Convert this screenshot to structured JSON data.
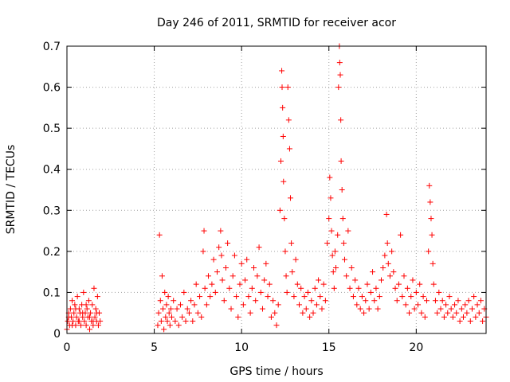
{
  "chart_data": {
    "type": "scatter",
    "title": "Day 246 of 2011, SRMTID for receiver acor",
    "xlabel": "GPS time / hours",
    "ylabel": "SRMTID / TECUs",
    "xlim": [
      0,
      24
    ],
    "ylim": [
      0,
      0.7
    ],
    "x_ticks": [
      0,
      5,
      10,
      15,
      20
    ],
    "x_tick_labels": [
      "0",
      "5",
      "10",
      "15",
      "20"
    ],
    "y_ticks": [
      0,
      0.1,
      0.2,
      0.3,
      0.4,
      0.5,
      0.6,
      0.7
    ],
    "y_tick_labels": [
      "0",
      "0.1",
      "0.2",
      "0.3",
      "0.4",
      "0.5",
      "0.6",
      "0.7"
    ],
    "grid": true,
    "marker": "+",
    "color": "#ff0000",
    "series": [
      {
        "name": "SRMTID",
        "points": [
          [
            0.0,
            0.01
          ],
          [
            0.05,
            0.03
          ],
          [
            0.1,
            0.05
          ],
          [
            0.15,
            0.02
          ],
          [
            0.2,
            0.06
          ],
          [
            0.25,
            0.04
          ],
          [
            0.3,
            0.08
          ],
          [
            0.35,
            0.03
          ],
          [
            0.4,
            0.05
          ],
          [
            0.45,
            0.07
          ],
          [
            0.5,
            0.02
          ],
          [
            0.55,
            0.04
          ],
          [
            0.6,
            0.09
          ],
          [
            0.65,
            0.03
          ],
          [
            0.7,
            0.06
          ],
          [
            0.75,
            0.05
          ],
          [
            0.8,
            0.02
          ],
          [
            0.85,
            0.07
          ],
          [
            0.9,
            0.04
          ],
          [
            0.95,
            0.1
          ],
          [
            1.0,
            0.03
          ],
          [
            1.05,
            0.05
          ],
          [
            1.1,
            0.02
          ],
          [
            1.15,
            0.06
          ],
          [
            1.2,
            0.04
          ],
          [
            1.25,
            0.08
          ],
          [
            1.3,
            0.01
          ],
          [
            1.35,
            0.05
          ],
          [
            1.4,
            0.03
          ],
          [
            1.45,
            0.07
          ],
          [
            1.5,
            0.02
          ],
          [
            1.55,
            0.11
          ],
          [
            1.6,
            0.04
          ],
          [
            1.65,
            0.06
          ],
          [
            1.7,
            0.03
          ],
          [
            1.75,
            0.09
          ],
          [
            1.8,
            0.02
          ],
          [
            1.85,
            0.05
          ],
          [
            1.9,
            0.03
          ],
          [
            0.1,
            0.04
          ],
          [
            0.3,
            0.02
          ],
          [
            0.5,
            0.06
          ],
          [
            0.7,
            0.03
          ],
          [
            0.9,
            0.05
          ],
          [
            1.1,
            0.07
          ],
          [
            1.3,
            0.04
          ],
          [
            1.5,
            0.03
          ],
          [
            1.7,
            0.05
          ],
          [
            5.2,
            0.02
          ],
          [
            5.25,
            0.05
          ],
          [
            5.3,
            0.24
          ],
          [
            5.35,
            0.08
          ],
          [
            5.4,
            0.03
          ],
          [
            5.45,
            0.14
          ],
          [
            5.5,
            0.06
          ],
          [
            5.55,
            0.01
          ],
          [
            5.6,
            0.1
          ],
          [
            5.65,
            0.04
          ],
          [
            5.7,
            0.07
          ],
          [
            5.75,
            0.03
          ],
          [
            5.8,
            0.09
          ],
          [
            5.85,
            0.05
          ],
          [
            5.9,
            0.02
          ],
          [
            5.95,
            0.06
          ],
          [
            6.0,
            0.04
          ],
          [
            6.1,
            0.08
          ],
          [
            6.2,
            0.03
          ],
          [
            6.3,
            0.06
          ],
          [
            6.4,
            0.02
          ],
          [
            6.5,
            0.07
          ],
          [
            6.6,
            0.04
          ],
          [
            6.7,
            0.1
          ],
          [
            6.8,
            0.03
          ],
          [
            6.9,
            0.06
          ],
          [
            7.0,
            0.05
          ],
          [
            7.1,
            0.08
          ],
          [
            7.2,
            0.03
          ],
          [
            7.3,
            0.07
          ],
          [
            7.4,
            0.12
          ],
          [
            7.5,
            0.05
          ],
          [
            7.6,
            0.09
          ],
          [
            7.7,
            0.04
          ],
          [
            7.8,
            0.2
          ],
          [
            7.85,
            0.25
          ],
          [
            7.9,
            0.11
          ],
          [
            8.0,
            0.07
          ],
          [
            8.1,
            0.14
          ],
          [
            8.2,
            0.09
          ],
          [
            8.3,
            0.12
          ],
          [
            8.4,
            0.18
          ],
          [
            8.5,
            0.1
          ],
          [
            8.6,
            0.15
          ],
          [
            8.7,
            0.21
          ],
          [
            8.8,
            0.25
          ],
          [
            8.85,
            0.19
          ],
          [
            8.9,
            0.13
          ],
          [
            9.0,
            0.08
          ],
          [
            9.1,
            0.16
          ],
          [
            9.2,
            0.22
          ],
          [
            9.3,
            0.11
          ],
          [
            9.4,
            0.06
          ],
          [
            9.5,
            0.14
          ],
          [
            9.6,
            0.19
          ],
          [
            9.7,
            0.09
          ],
          [
            9.8,
            0.04
          ],
          [
            9.9,
            0.12
          ],
          [
            10.0,
            0.17
          ],
          [
            10.1,
            0.07
          ],
          [
            10.2,
            0.13
          ],
          [
            10.3,
            0.18
          ],
          [
            10.4,
            0.09
          ],
          [
            10.5,
            0.05
          ],
          [
            10.6,
            0.11
          ],
          [
            10.7,
            0.16
          ],
          [
            10.8,
            0.08
          ],
          [
            10.9,
            0.14
          ],
          [
            11.0,
            0.21
          ],
          [
            11.1,
            0.1
          ],
          [
            11.2,
            0.06
          ],
          [
            11.3,
            0.13
          ],
          [
            11.4,
            0.17
          ],
          [
            11.5,
            0.09
          ],
          [
            11.6,
            0.12
          ],
          [
            11.7,
            0.04
          ],
          [
            11.8,
            0.08
          ],
          [
            11.9,
            0.05
          ],
          [
            12.0,
            0.02
          ],
          [
            12.1,
            0.07
          ],
          [
            12.2,
            0.3
          ],
          [
            12.25,
            0.42
          ],
          [
            12.3,
            0.64
          ],
          [
            12.32,
            0.6
          ],
          [
            12.35,
            0.55
          ],
          [
            12.38,
            0.48
          ],
          [
            12.4,
            0.37
          ],
          [
            12.45,
            0.28
          ],
          [
            12.5,
            0.2
          ],
          [
            12.55,
            0.14
          ],
          [
            12.6,
            0.1
          ],
          [
            12.65,
            0.6
          ],
          [
            12.7,
            0.52
          ],
          [
            12.75,
            0.45
          ],
          [
            12.8,
            0.33
          ],
          [
            12.85,
            0.22
          ],
          [
            12.9,
            0.15
          ],
          [
            13.0,
            0.09
          ],
          [
            13.1,
            0.18
          ],
          [
            13.2,
            0.12
          ],
          [
            13.3,
            0.07
          ],
          [
            13.4,
            0.11
          ],
          [
            13.5,
            0.05
          ],
          [
            13.6,
            0.09
          ],
          [
            13.7,
            0.06
          ],
          [
            13.8,
            0.1
          ],
          [
            13.9,
            0.04
          ],
          [
            14.0,
            0.08
          ],
          [
            14.1,
            0.05
          ],
          [
            14.2,
            0.11
          ],
          [
            14.3,
            0.07
          ],
          [
            14.4,
            0.13
          ],
          [
            14.5,
            0.09
          ],
          [
            14.6,
            0.06
          ],
          [
            14.7,
            0.12
          ],
          [
            14.8,
            0.08
          ],
          [
            14.9,
            0.22
          ],
          [
            15.0,
            0.28
          ],
          [
            15.05,
            0.38
          ],
          [
            15.1,
            0.33
          ],
          [
            15.15,
            0.25
          ],
          [
            15.2,
            0.19
          ],
          [
            15.25,
            0.15
          ],
          [
            15.3,
            0.11
          ],
          [
            15.35,
            0.2
          ],
          [
            15.4,
            0.16
          ],
          [
            15.5,
            0.24
          ],
          [
            15.55,
            0.6
          ],
          [
            15.6,
            0.7
          ],
          [
            15.62,
            0.66
          ],
          [
            15.65,
            0.63
          ],
          [
            15.68,
            0.52
          ],
          [
            15.7,
            0.42
          ],
          [
            15.75,
            0.35
          ],
          [
            15.8,
            0.28
          ],
          [
            15.85,
            0.22
          ],
          [
            15.9,
            0.18
          ],
          [
            16.0,
            0.14
          ],
          [
            16.1,
            0.25
          ],
          [
            16.2,
            0.11
          ],
          [
            16.3,
            0.16
          ],
          [
            16.4,
            0.09
          ],
          [
            16.5,
            0.13
          ],
          [
            16.6,
            0.07
          ],
          [
            16.7,
            0.11
          ],
          [
            16.8,
            0.06
          ],
          [
            16.9,
            0.09
          ],
          [
            17.0,
            0.05
          ],
          [
            17.1,
            0.08
          ],
          [
            17.2,
            0.12
          ],
          [
            17.3,
            0.06
          ],
          [
            17.4,
            0.1
          ],
          [
            17.5,
            0.15
          ],
          [
            17.6,
            0.08
          ],
          [
            17.7,
            0.11
          ],
          [
            17.8,
            0.06
          ],
          [
            17.9,
            0.09
          ],
          [
            18.0,
            0.13
          ],
          [
            18.1,
            0.16
          ],
          [
            18.2,
            0.19
          ],
          [
            18.3,
            0.29
          ],
          [
            18.35,
            0.22
          ],
          [
            18.4,
            0.17
          ],
          [
            18.5,
            0.14
          ],
          [
            18.6,
            0.2
          ],
          [
            18.7,
            0.15
          ],
          [
            18.8,
            0.11
          ],
          [
            18.9,
            0.08
          ],
          [
            19.0,
            0.12
          ],
          [
            19.1,
            0.24
          ],
          [
            19.2,
            0.09
          ],
          [
            19.3,
            0.14
          ],
          [
            19.4,
            0.07
          ],
          [
            19.5,
            0.11
          ],
          [
            19.6,
            0.05
          ],
          [
            19.7,
            0.09
          ],
          [
            19.8,
            0.13
          ],
          [
            19.9,
            0.06
          ],
          [
            20.0,
            0.1
          ],
          [
            20.1,
            0.07
          ],
          [
            20.2,
            0.12
          ],
          [
            20.3,
            0.05
          ],
          [
            20.4,
            0.09
          ],
          [
            20.5,
            0.04
          ],
          [
            20.6,
            0.08
          ],
          [
            20.7,
            0.2
          ],
          [
            20.75,
            0.36
          ],
          [
            20.8,
            0.32
          ],
          [
            20.85,
            0.28
          ],
          [
            20.9,
            0.24
          ],
          [
            20.95,
            0.17
          ],
          [
            21.0,
            0.12
          ],
          [
            21.1,
            0.08
          ],
          [
            21.2,
            0.05
          ],
          [
            21.3,
            0.1
          ],
          [
            21.4,
            0.06
          ],
          [
            21.5,
            0.08
          ],
          [
            21.6,
            0.04
          ],
          [
            21.7,
            0.07
          ],
          [
            21.8,
            0.05
          ],
          [
            21.9,
            0.09
          ],
          [
            22.0,
            0.06
          ],
          [
            22.1,
            0.04
          ],
          [
            22.2,
            0.07
          ],
          [
            22.3,
            0.05
          ],
          [
            22.4,
            0.08
          ],
          [
            22.5,
            0.03
          ],
          [
            22.6,
            0.06
          ],
          [
            22.7,
            0.04
          ],
          [
            22.8,
            0.07
          ],
          [
            22.9,
            0.05
          ],
          [
            23.0,
            0.08
          ],
          [
            23.1,
            0.03
          ],
          [
            23.2,
            0.06
          ],
          [
            23.3,
            0.09
          ],
          [
            23.4,
            0.04
          ],
          [
            23.5,
            0.07
          ],
          [
            23.6,
            0.05
          ],
          [
            23.7,
            0.08
          ],
          [
            23.8,
            0.03
          ],
          [
            23.9,
            0.06
          ],
          [
            24.0,
            0.04
          ]
        ]
      }
    ]
  }
}
